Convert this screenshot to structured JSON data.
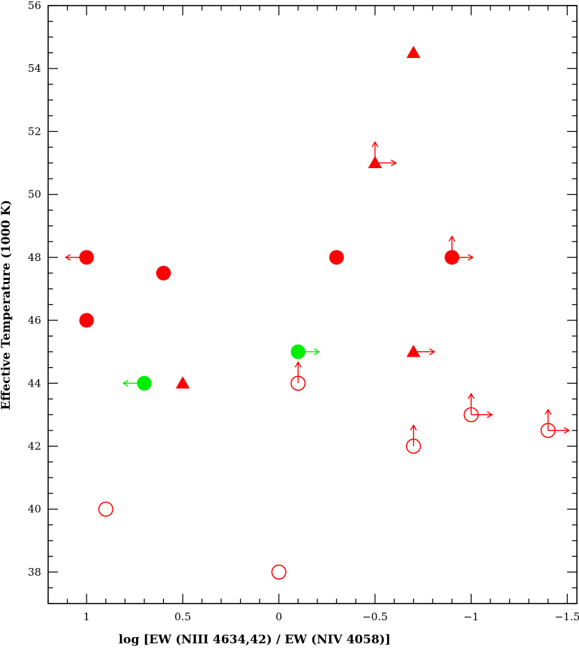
{
  "chart_data": {
    "type": "scatter",
    "title": "",
    "xlabel": "log [EW (NIII 4634,42) / EW (NIV 4058)]",
    "ylabel": "Effective Temperature (1000 K)",
    "xlim": [
      1.2,
      -1.55
    ],
    "ylim": [
      37,
      56
    ],
    "x_reversed": true,
    "x_ticks": [
      1,
      0.5,
      0,
      -0.5,
      -1,
      -1.5
    ],
    "x_tick_labels": [
      "1",
      "0.5",
      "0",
      "−0.5",
      "−1",
      "−1.5"
    ],
    "y_ticks": [
      38,
      40,
      42,
      44,
      46,
      48,
      50,
      52,
      54,
      56
    ],
    "y_tick_labels": [
      "38",
      "40",
      "42",
      "44",
      "46",
      "48",
      "50",
      "52",
      "54",
      "56"
    ],
    "grid": false,
    "legend": "none",
    "colors": {
      "red": "#ff0000",
      "green": "#00ee00"
    },
    "points": [
      {
        "x": 1.0,
        "y": 48.0,
        "marker": "filled-circle",
        "color": "red",
        "left_limit": true
      },
      {
        "x": 1.0,
        "y": 46.0,
        "marker": "filled-circle",
        "color": "red"
      },
      {
        "x": 0.6,
        "y": 47.5,
        "marker": "filled-circle",
        "color": "red"
      },
      {
        "x": -0.3,
        "y": 48.0,
        "marker": "filled-circle",
        "color": "red"
      },
      {
        "x": -0.9,
        "y": 48.0,
        "marker": "filled-circle",
        "color": "red",
        "up_limit": true,
        "right_limit": true
      },
      {
        "x": -0.7,
        "y": 54.5,
        "marker": "filled-triangle",
        "color": "red"
      },
      {
        "x": -0.5,
        "y": 51.0,
        "marker": "filled-triangle",
        "color": "red",
        "up_limit": true,
        "right_limit": true
      },
      {
        "x": -0.7,
        "y": 45.0,
        "marker": "filled-triangle",
        "color": "red",
        "right_limit": true
      },
      {
        "x": 0.5,
        "y": 44.0,
        "marker": "filled-triangle",
        "color": "red"
      },
      {
        "x": 0.7,
        "y": 44.0,
        "marker": "filled-circle",
        "color": "green",
        "left_limit": true
      },
      {
        "x": -0.1,
        "y": 45.0,
        "marker": "filled-circle",
        "color": "green",
        "right_limit": true
      },
      {
        "x": -0.1,
        "y": 44.0,
        "marker": "open-circle",
        "color": "red",
        "up_limit": true
      },
      {
        "x": -0.7,
        "y": 42.0,
        "marker": "open-circle",
        "color": "red",
        "up_limit": true
      },
      {
        "x": -1.0,
        "y": 43.0,
        "marker": "open-circle",
        "color": "red",
        "up_limit": true,
        "right_limit": true
      },
      {
        "x": -1.4,
        "y": 42.5,
        "marker": "open-circle",
        "color": "red",
        "up_limit": true,
        "right_limit": true
      },
      {
        "x": 0.9,
        "y": 40.0,
        "marker": "open-circle",
        "color": "red"
      },
      {
        "x": 0.0,
        "y": 38.0,
        "marker": "open-circle",
        "color": "red"
      }
    ]
  }
}
